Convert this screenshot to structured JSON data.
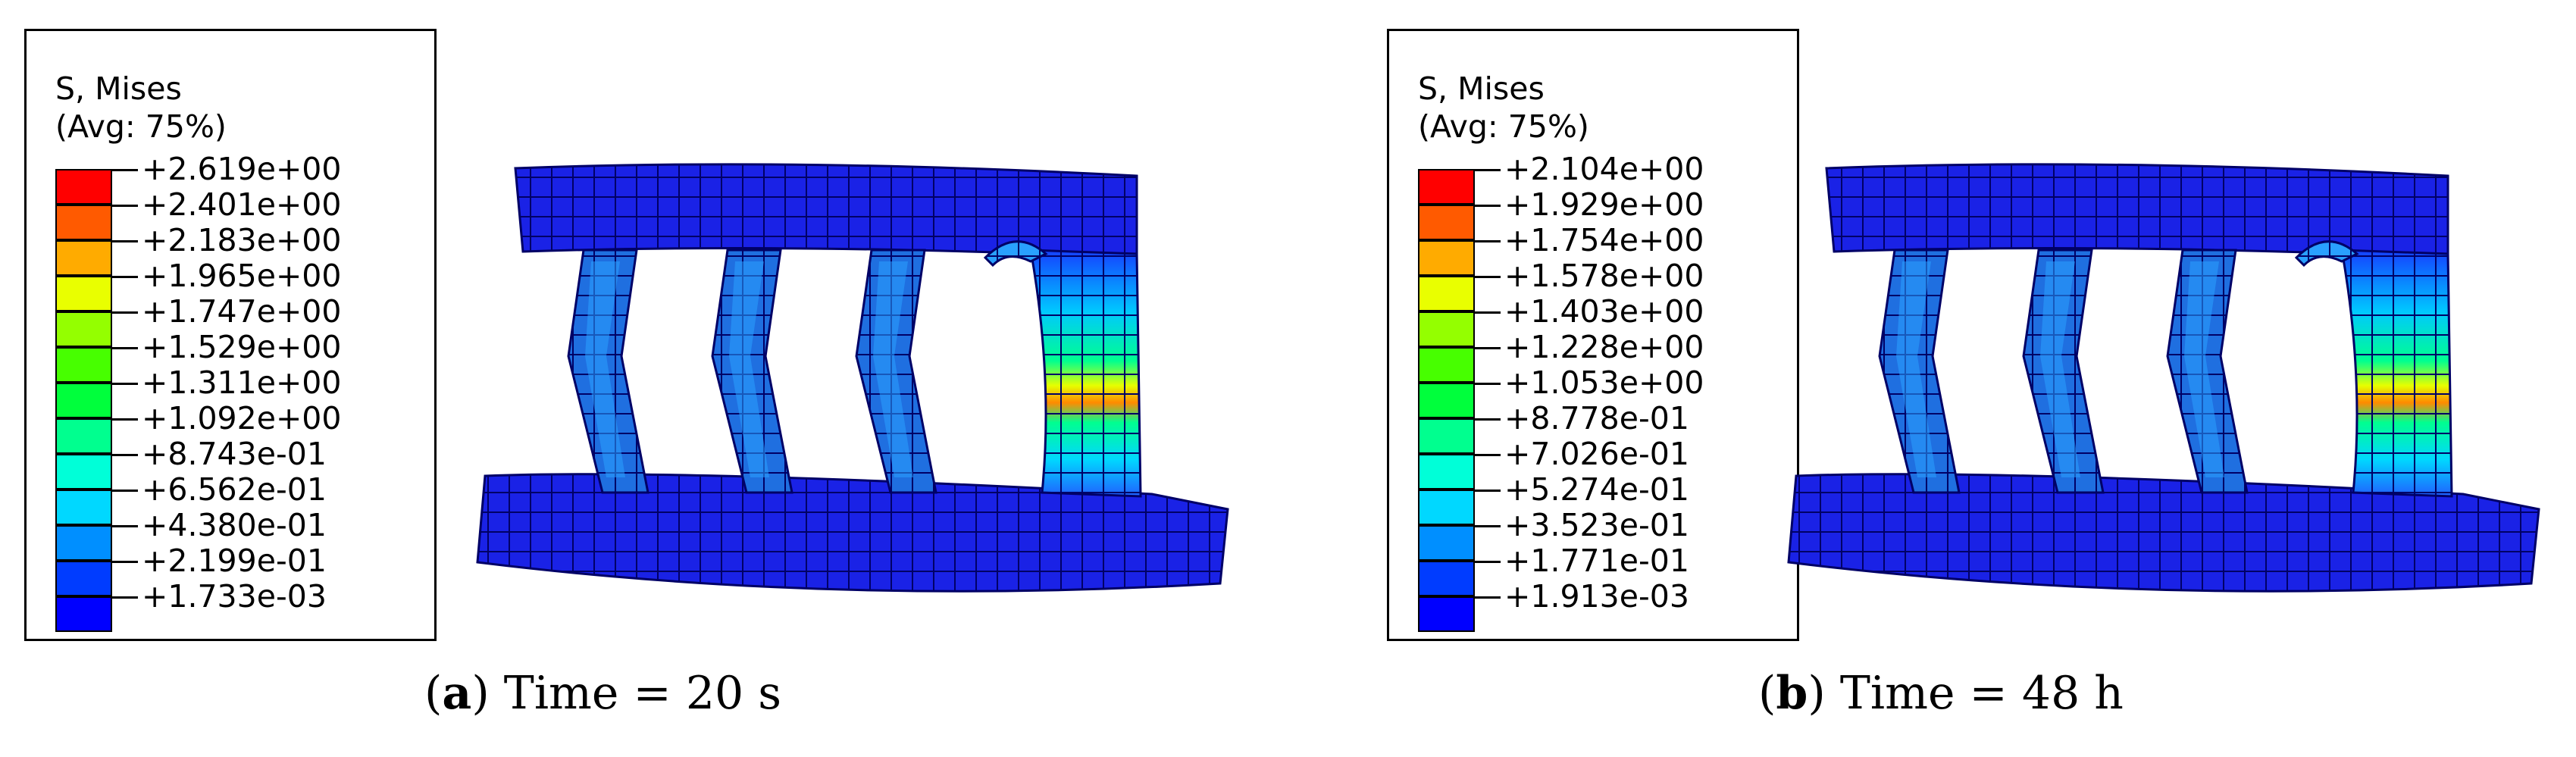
{
  "panels": [
    {
      "legend": {
        "title_line1": "S, Mises",
        "title_line2": "(Avg: 75%)",
        "labels": [
          "+2.619e+00",
          "+2.401e+00",
          "+2.183e+00",
          "+1.965e+00",
          "+1.747e+00",
          "+1.529e+00",
          "+1.311e+00",
          "+1.092e+00",
          "+8.743e-01",
          "+6.562e-01",
          "+4.380e-01",
          "+2.199e-01",
          "+1.733e-03"
        ]
      },
      "caption": {
        "letter": "a",
        "text": "Time = 20 s"
      }
    },
    {
      "legend": {
        "title_line1": "S, Mises",
        "title_line2": "(Avg: 75%)",
        "labels": [
          "+2.104e+00",
          "+1.929e+00",
          "+1.754e+00",
          "+1.578e+00",
          "+1.403e+00",
          "+1.228e+00",
          "+1.053e+00",
          "+8.778e-01",
          "+7.026e-01",
          "+5.274e-01",
          "+3.523e-01",
          "+1.771e-01",
          "+1.913e-03"
        ]
      },
      "caption": {
        "letter": "b",
        "text": "Time = 48 h"
      }
    }
  ],
  "colors": {
    "scale": [
      "#ff0000",
      "#ff5a00",
      "#ffab00",
      "#e9ff00",
      "#94ff00",
      "#47ff00",
      "#00ff3c",
      "#00ff8f",
      "#00ffd8",
      "#00d8ff",
      "#008fff",
      "#003cff",
      "#0000ff"
    ],
    "mesh_base": "#1a22e6",
    "mesh_line": "#000066"
  }
}
